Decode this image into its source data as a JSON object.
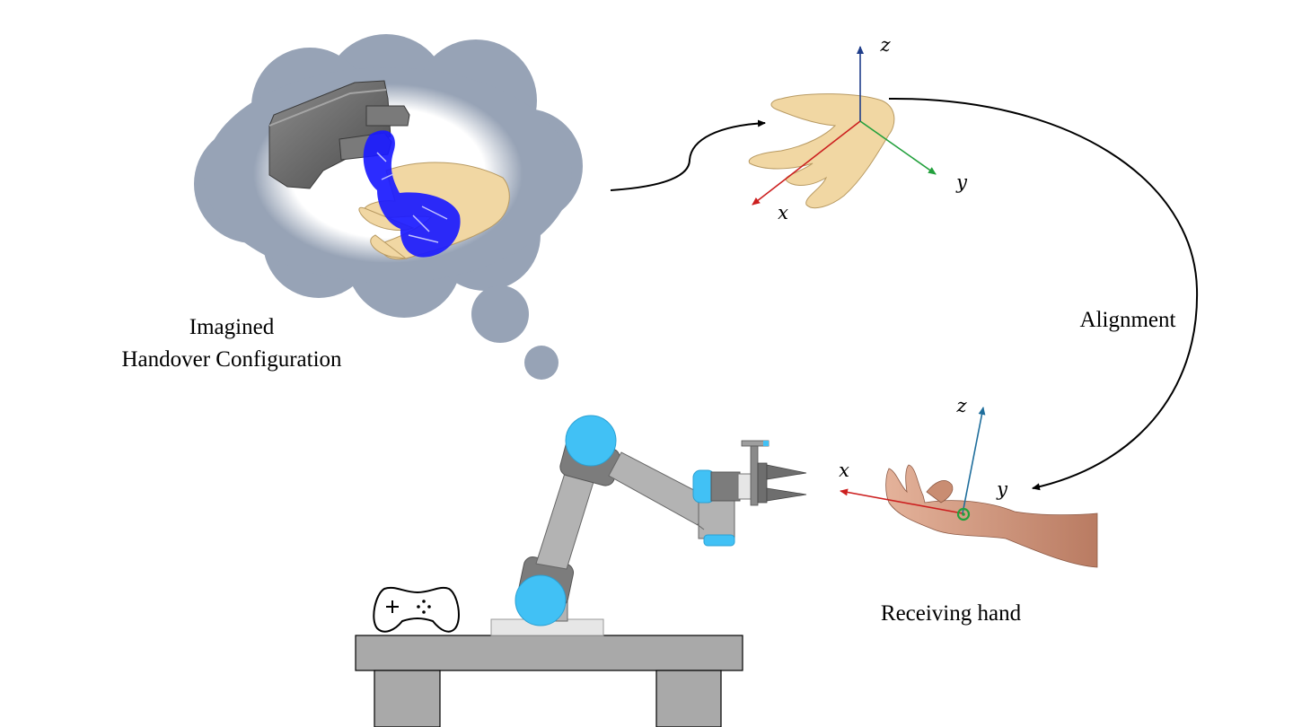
{
  "labels": {
    "imagined_line1": "Imagined",
    "imagined_line2": "Handover Configuration",
    "alignment": "Alignment",
    "receiving_hand": "Receiving hand"
  },
  "top_axes": {
    "x": "x",
    "y": "y",
    "z": "z"
  },
  "bottom_axes": {
    "x": "x",
    "y": "y",
    "z": "z"
  },
  "colors": {
    "cloud": "#97a3b6",
    "x_axis": "#cc1f1f",
    "y_axis": "#22a03c",
    "z_axis": "#1f3d8a",
    "z_axis_bottom": "#1f6e9c",
    "robot_joint": "#41c1f5",
    "robot_link": "#b3b3b3",
    "table": "#a9a9a9",
    "point_cloud": "#1a1aff",
    "skin_mesh": "#f1d7a3",
    "skin_photo": "#d9a58b",
    "gripper_body": "#6e6e6e"
  },
  "icons": [
    "gamepad-icon",
    "cloud-icon",
    "gripper-icon",
    "hand-mesh-icon",
    "point-cloud-icon"
  ]
}
